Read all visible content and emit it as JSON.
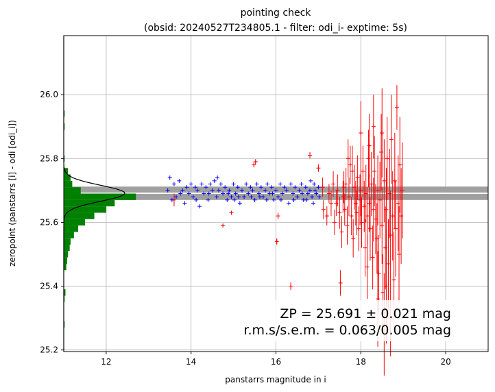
{
  "chart_data": {
    "type": "scatter",
    "title": "pointing check",
    "subtitle": "(obsid: 20240527T234805.1 - filter: odi_i- exptime: 5s)",
    "xlabel": "panstarrs magnitude in i",
    "ylabel": "zeropoint (panstarrs [i] - odi [odi_i])",
    "xlim": [
      11.0,
      21.0
    ],
    "ylim": [
      25.195,
      26.185
    ],
    "xticks": [
      12,
      14,
      16,
      18,
      20
    ],
    "yticks": [
      25.2,
      25.4,
      25.6,
      25.8,
      26.0
    ],
    "grid": true,
    "zp": 25.691,
    "zp_err": 0.021,
    "annotation": [
      "ZP = 25.691 ± 0.021 mag",
      "r.m.s/s.e.m. = 0.063/0.005 mag"
    ],
    "colors": {
      "used": "#0000ff",
      "rejected": "#ff0000",
      "band": "#a0a0a0",
      "histogram": "#008000",
      "gaussian": "#000000",
      "grid": "#b0b0b0"
    },
    "histogram": {
      "bin_width": 0.02,
      "bins": [
        {
          "y": 25.28,
          "count": 1
        },
        {
          "y": 25.3,
          "count": 0
        },
        {
          "y": 25.32,
          "count": 0
        },
        {
          "y": 25.34,
          "count": 0
        },
        {
          "y": 25.36,
          "count": 1
        },
        {
          "y": 25.38,
          "count": 2
        },
        {
          "y": 25.4,
          "count": 0
        },
        {
          "y": 25.42,
          "count": 0
        },
        {
          "y": 25.44,
          "count": 0
        },
        {
          "y": 25.46,
          "count": 3
        },
        {
          "y": 25.48,
          "count": 4
        },
        {
          "y": 25.5,
          "count": 5
        },
        {
          "y": 25.52,
          "count": 7
        },
        {
          "y": 25.54,
          "count": 8
        },
        {
          "y": 25.56,
          "count": 12
        },
        {
          "y": 25.58,
          "count": 17
        },
        {
          "y": 25.6,
          "count": 25
        },
        {
          "y": 25.62,
          "count": 36
        },
        {
          "y": 25.64,
          "count": 50
        },
        {
          "y": 25.66,
          "count": 60
        },
        {
          "y": 25.68,
          "count": 85
        },
        {
          "y": 25.7,
          "count": 20
        },
        {
          "y": 25.72,
          "count": 10
        },
        {
          "y": 25.74,
          "count": 8
        },
        {
          "y": 25.76,
          "count": 5
        },
        {
          "y": 25.8,
          "count": 1
        },
        {
          "y": 25.9,
          "count": 1
        },
        {
          "y": 25.94,
          "count": 1
        }
      ]
    },
    "gaussian": {
      "mean": 25.691,
      "sigma": 0.025,
      "peak_count": 72
    },
    "series": [
      {
        "group": "used",
        "points": [
          [
            13.45,
            25.7
          ],
          [
            13.5,
            25.74
          ],
          [
            13.6,
            25.72
          ],
          [
            13.65,
            25.68
          ],
          [
            13.72,
            25.73
          ],
          [
            13.8,
            25.7
          ],
          [
            13.85,
            25.66
          ],
          [
            13.9,
            25.71
          ],
          [
            13.95,
            25.69
          ],
          [
            14.0,
            25.72
          ],
          [
            14.05,
            25.68
          ],
          [
            14.1,
            25.71
          ],
          [
            14.15,
            25.7
          ],
          [
            14.2,
            25.65
          ],
          [
            14.25,
            25.72
          ],
          [
            14.3,
            25.69
          ],
          [
            14.35,
            25.71
          ],
          [
            14.4,
            25.67
          ],
          [
            14.45,
            25.72
          ],
          [
            14.5,
            25.7
          ],
          [
            14.55,
            25.73
          ],
          [
            14.6,
            25.68
          ],
          [
            14.65,
            25.7
          ],
          [
            14.7,
            25.72
          ],
          [
            14.75,
            25.69
          ],
          [
            14.8,
            25.71
          ],
          [
            14.85,
            25.67
          ],
          [
            14.9,
            25.7
          ],
          [
            14.95,
            25.68
          ],
          [
            15.0,
            25.72
          ],
          [
            15.05,
            25.69
          ],
          [
            15.1,
            25.71
          ],
          [
            15.15,
            25.66
          ],
          [
            15.2,
            25.7
          ],
          [
            15.25,
            25.68
          ],
          [
            15.3,
            25.72
          ],
          [
            15.35,
            25.69
          ],
          [
            15.4,
            25.71
          ],
          [
            15.45,
            25.7
          ],
          [
            15.5,
            25.67
          ],
          [
            15.55,
            25.72
          ],
          [
            15.6,
            25.69
          ],
          [
            15.65,
            25.71
          ],
          [
            15.7,
            25.68
          ],
          [
            15.75,
            25.7
          ],
          [
            15.8,
            25.72
          ],
          [
            15.85,
            25.69
          ],
          [
            15.9,
            25.71
          ],
          [
            15.95,
            25.67
          ],
          [
            16.0,
            25.7
          ],
          [
            16.05,
            25.68
          ],
          [
            16.1,
            25.72
          ],
          [
            16.15,
            25.69
          ],
          [
            16.2,
            25.71
          ],
          [
            16.25,
            25.7
          ],
          [
            16.3,
            25.66
          ],
          [
            16.35,
            25.72
          ],
          [
            16.4,
            25.69
          ],
          [
            16.45,
            25.71
          ],
          [
            16.5,
            25.68
          ],
          [
            16.55,
            25.7
          ],
          [
            16.6,
            25.72
          ],
          [
            16.65,
            25.67
          ],
          [
            16.7,
            25.71
          ],
          [
            16.75,
            25.69
          ],
          [
            16.8,
            25.7
          ],
          [
            16.85,
            25.68
          ],
          [
            16.9,
            25.72
          ],
          [
            16.95,
            25.69
          ],
          [
            17.0,
            25.71
          ],
          [
            13.55,
            25.67
          ],
          [
            13.75,
            25.69
          ],
          [
            14.12,
            25.67
          ],
          [
            14.42,
            25.69
          ],
          [
            14.62,
            25.74
          ],
          [
            14.88,
            25.69
          ],
          [
            15.12,
            25.68
          ],
          [
            15.42,
            25.68
          ],
          [
            15.62,
            25.68
          ],
          [
            15.92,
            25.69
          ],
          [
            16.12,
            25.67
          ],
          [
            16.42,
            25.67
          ],
          [
            16.62,
            25.69
          ],
          [
            16.82,
            25.73
          ],
          [
            16.72,
            25.67
          ],
          [
            16.88,
            25.66
          ],
          [
            16.92,
            25.7
          ],
          [
            17.02,
            25.68
          ],
          [
            15.78,
            25.67
          ],
          [
            15.02,
            25.67
          ]
        ]
      },
      {
        "group": "rejected",
        "points": [
          [
            13.6,
            25.67,
            0.02
          ],
          [
            14.75,
            25.59,
            0.004
          ],
          [
            14.95,
            25.63,
            0.006
          ],
          [
            15.48,
            25.78,
            0.008
          ],
          [
            15.52,
            25.79,
            0.008
          ],
          [
            16.02,
            25.54,
            0.01
          ],
          [
            16.05,
            25.62,
            0.01
          ],
          [
            16.35,
            25.4,
            0.012
          ],
          [
            16.8,
            25.81,
            0.01
          ],
          [
            17.0,
            25.77,
            0.012
          ],
          [
            17.12,
            25.64,
            0.03
          ],
          [
            17.2,
            25.62,
            0.03
          ],
          [
            17.3,
            25.66,
            0.04
          ],
          [
            17.38,
            25.6,
            0.04
          ],
          [
            17.45,
            25.7,
            0.05
          ],
          [
            17.5,
            25.63,
            0.05
          ],
          [
            17.55,
            25.57,
            0.05
          ],
          [
            17.6,
            25.71,
            0.05
          ],
          [
            17.62,
            25.64,
            0.05
          ],
          [
            17.68,
            25.59,
            0.06
          ],
          [
            17.72,
            25.68,
            0.06
          ],
          [
            17.75,
            25.78,
            0.06
          ],
          [
            17.78,
            25.62,
            0.06
          ],
          [
            17.82,
            25.55,
            0.06
          ],
          [
            17.85,
            25.71,
            0.07
          ],
          [
            17.88,
            25.66,
            0.07
          ],
          [
            17.9,
            25.63,
            0.07
          ],
          [
            17.92,
            25.74,
            0.07
          ],
          [
            17.95,
            25.58,
            0.07
          ],
          [
            17.98,
            25.67,
            0.08
          ],
          [
            18.0,
            25.7,
            0.08
          ],
          [
            18.02,
            25.6,
            0.08
          ],
          [
            18.05,
            25.76,
            0.08
          ],
          [
            18.08,
            25.65,
            0.08
          ],
          [
            18.1,
            25.52,
            0.09
          ],
          [
            18.12,
            25.69,
            0.09
          ],
          [
            18.15,
            25.62,
            0.09
          ],
          [
            18.18,
            25.8,
            0.09
          ],
          [
            18.2,
            25.66,
            0.09
          ],
          [
            18.22,
            25.58,
            0.1
          ],
          [
            18.25,
            25.72,
            0.1
          ],
          [
            18.28,
            25.49,
            0.1
          ],
          [
            18.3,
            25.64,
            0.1
          ],
          [
            18.32,
            25.76,
            0.11
          ],
          [
            18.35,
            25.61,
            0.11
          ],
          [
            18.38,
            25.55,
            0.11
          ],
          [
            18.4,
            25.7,
            0.11
          ],
          [
            18.42,
            25.44,
            0.12
          ],
          [
            18.45,
            25.67,
            0.12
          ],
          [
            18.48,
            25.82,
            0.12
          ],
          [
            18.5,
            25.59,
            0.12
          ],
          [
            18.52,
            25.38,
            0.12
          ],
          [
            18.55,
            25.73,
            0.13
          ],
          [
            18.58,
            25.52,
            0.13
          ],
          [
            18.6,
            25.64,
            0.13
          ],
          [
            18.62,
            25.8,
            0.13
          ],
          [
            18.65,
            25.47,
            0.14
          ],
          [
            18.68,
            25.69,
            0.14
          ],
          [
            18.7,
            25.56,
            0.14
          ],
          [
            18.72,
            25.86,
            0.14
          ],
          [
            18.75,
            25.62,
            0.14
          ],
          [
            18.78,
            25.42,
            0.15
          ],
          [
            18.8,
            25.73,
            0.15
          ],
          [
            18.82,
            25.58,
            0.15
          ],
          [
            18.85,
            25.96,
            0.07
          ],
          [
            18.88,
            25.66,
            0.15
          ],
          [
            18.9,
            25.5,
            0.15
          ],
          [
            18.92,
            25.78,
            0.15
          ],
          [
            18.95,
            25.62,
            0.15
          ],
          [
            18.98,
            25.7,
            0.15
          ],
          [
            17.1,
            25.71,
            0.03
          ],
          [
            17.25,
            25.69,
            0.03
          ],
          [
            17.35,
            25.72,
            0.04
          ],
          [
            17.42,
            25.66,
            0.04
          ],
          [
            17.58,
            25.68,
            0.05
          ],
          [
            17.65,
            25.72,
            0.05
          ],
          [
            18.6,
            25.4,
            0.18
          ],
          [
            18.4,
            25.36,
            0.15
          ],
          [
            18.7,
            25.3,
            0.12
          ],
          [
            18.0,
            25.88,
            0.1
          ],
          [
            18.3,
            25.9,
            0.1
          ],
          [
            17.52,
            25.41,
            0.04
          ],
          [
            17.8,
            25.76,
            0.08
          ],
          [
            18.15,
            25.46,
            0.1
          ],
          [
            18.55,
            25.28,
            0.16
          ],
          [
            18.2,
            25.84,
            0.1
          ],
          [
            17.7,
            25.8,
            0.06
          ],
          [
            18.5,
            25.88,
            0.14
          ]
        ]
      }
    ]
  }
}
